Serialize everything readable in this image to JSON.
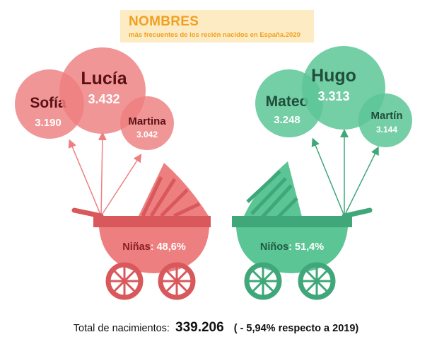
{
  "title": {
    "main": "NOMBRES",
    "subtitle": "más frecuentes de los recién nacidos en España.2020"
  },
  "girls": {
    "color": "#ee7f80",
    "dark_color": "#d9585b",
    "balloons": [
      {
        "name": "Sofía",
        "value": "3.190"
      },
      {
        "name": "Lucía",
        "value": "3.432"
      },
      {
        "name": "Martina",
        "value": "3.042"
      }
    ],
    "stroller_label": "Niñas",
    "stroller_percent": "48,6%"
  },
  "boys": {
    "color": "#5cc596",
    "dark_color": "#3fa77a",
    "balloons": [
      {
        "name": "Mateo",
        "value": "3.248"
      },
      {
        "name": "Hugo",
        "value": "3.313"
      },
      {
        "name": "Martín",
        "value": "3.144"
      }
    ],
    "stroller_label": "Niños",
    "stroller_percent": "51,4%"
  },
  "footer": {
    "label": "Total de nacimientos:",
    "total": "339.206",
    "change": "( - 5,94% respecto a 2019)"
  }
}
